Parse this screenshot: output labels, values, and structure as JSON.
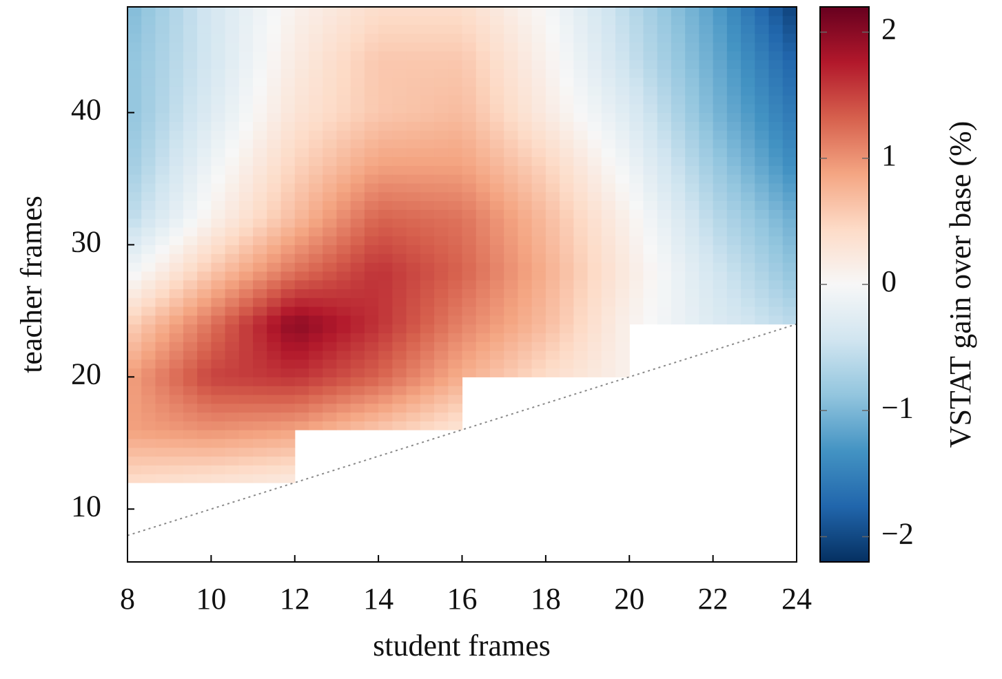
{
  "chart_data": {
    "type": "contourf",
    "x_label": "student frames",
    "y_label": "teacher frames",
    "colorbar_label": "VSTAT gain over base (%)",
    "x": [
      8,
      10,
      12,
      14,
      16,
      18,
      20,
      22,
      24
    ],
    "y": [
      12,
      16,
      20,
      24,
      28,
      32,
      36,
      40,
      44,
      48
    ],
    "z": [
      [
        0.4,
        0.3,
        0.2,
        null,
        null,
        null,
        null,
        null,
        null
      ],
      [
        0.9,
        1.0,
        0.9,
        0.6,
        0.3,
        null,
        null,
        null,
        null
      ],
      [
        0.9,
        1.5,
        1.6,
        1.3,
        0.8,
        0.4,
        0.1,
        null,
        null
      ],
      [
        0.5,
        1.2,
        2.0,
        1.6,
        1.1,
        0.7,
        0.1,
        -0.3,
        -0.6
      ],
      [
        -0.1,
        0.6,
        1.2,
        1.6,
        1.3,
        0.8,
        0.2,
        -0.4,
        -0.9
      ],
      [
        -0.6,
        0.1,
        0.7,
        1.3,
        1.2,
        0.7,
        0.1,
        -0.6,
        -1.1
      ],
      [
        -0.8,
        -0.1,
        0.5,
        0.9,
        0.9,
        0.5,
        -0.1,
        -0.8,
        -1.4
      ],
      [
        -0.9,
        -0.3,
        0.3,
        0.6,
        0.7,
        0.2,
        -0.3,
        -1.0,
        -1.6
      ],
      [
        -0.9,
        -0.4,
        0.2,
        0.6,
        0.6,
        0.1,
        -0.5,
        -1.1,
        -1.8
      ],
      [
        -1.0,
        -0.4,
        0.1,
        0.4,
        0.4,
        0.0,
        -0.6,
        -1.2,
        -2.1
      ]
    ],
    "xlim": [
      8,
      24
    ],
    "ylim": [
      6,
      48
    ],
    "xticks": [
      8,
      10,
      12,
      14,
      16,
      18,
      20,
      22,
      24
    ],
    "yticks": [
      10,
      20,
      30,
      40
    ],
    "clim": [
      -2.2,
      2.2
    ],
    "cticks": [
      {
        "value": -2,
        "label": "−2"
      },
      {
        "value": -1,
        "label": "−1"
      },
      0,
      1,
      2
    ],
    "colormap": [
      "#053061",
      "#2166ac",
      "#4393c3",
      "#92c5de",
      "#d1e5f0",
      "#f7f7f7",
      "#fddbc7",
      "#f4a582",
      "#d6604d",
      "#b2182b",
      "#67001f"
    ]
  }
}
